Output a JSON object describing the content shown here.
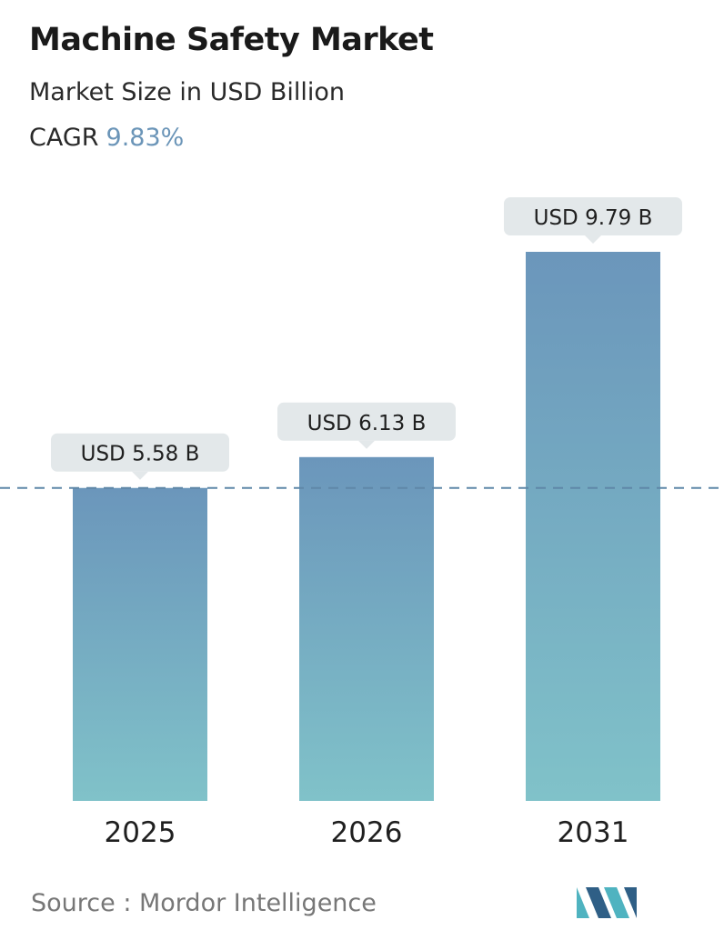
{
  "header": {
    "title": "Machine Safety Market",
    "subtitle": "Market Size in USD Billion",
    "cagr_label": "CAGR",
    "cagr_value": "9.83%"
  },
  "footer": {
    "source_text": "Source :  Mordor Intelligence",
    "logo_icon": "mordor-intelligence-logo-icon"
  },
  "colors": {
    "bar_top": "#6b96bb",
    "bar_bottom": "#80c2c9",
    "label_bg": "#e3e8ea",
    "dashed_line": "#5f87a8",
    "cagr_accent": "#6b95b8",
    "logo_dark": "#2f5f86",
    "logo_light": "#4fb3c0"
  },
  "chart_data": {
    "type": "bar",
    "title": "Machine Safety Market",
    "subtitle": "Market Size in USD Billion",
    "categories": [
      "2025",
      "2026",
      "2031"
    ],
    "values": [
      5.58,
      6.13,
      9.79
    ],
    "data_labels": [
      "USD 5.58 B",
      "USD 6.13 B",
      "USD 9.79 B"
    ],
    "reference_line": {
      "value": 5.58,
      "style": "dashed"
    },
    "grid": false,
    "legend": "none",
    "ylim": [
      0,
      9.79
    ]
  }
}
